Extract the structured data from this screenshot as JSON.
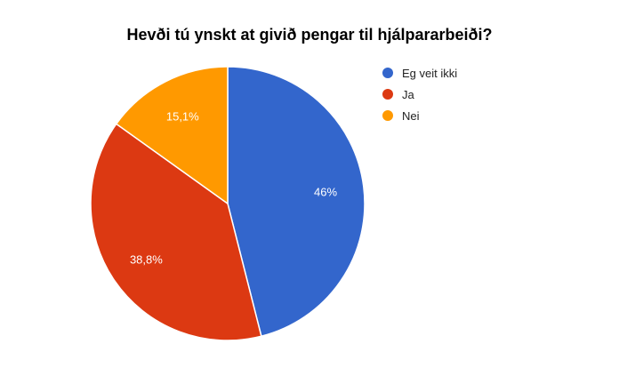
{
  "chart_data": {
    "type": "pie",
    "title": "Hevði tú ynskt at givið pengar til hjálpararbeiði?",
    "slices": [
      {
        "label": "Eg veit ikki",
        "value": 46,
        "display": "46%",
        "color": "#3366cc"
      },
      {
        "label": "Ja",
        "value": 38.8,
        "display": "38,8%",
        "color": "#dc3912"
      },
      {
        "label": "Nei",
        "value": 15.1,
        "display": "15,1%",
        "color": "#ff9900"
      }
    ],
    "legend_position": "right"
  }
}
